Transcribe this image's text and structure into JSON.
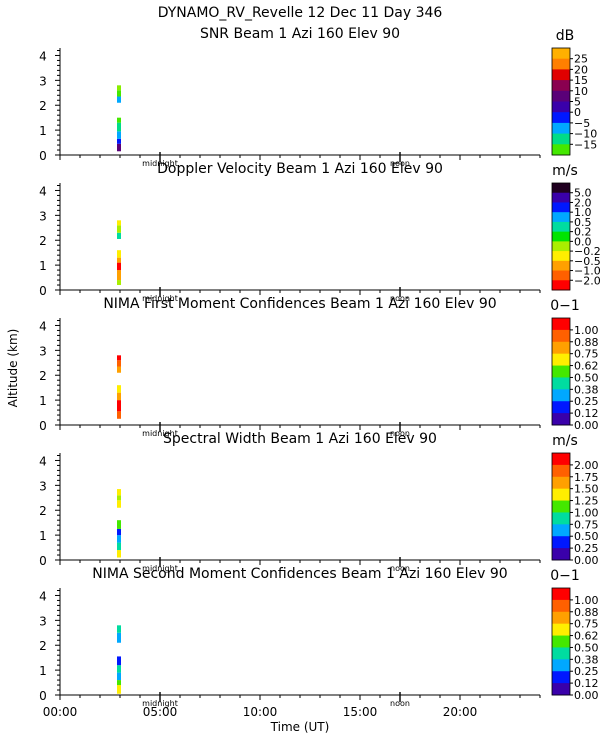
{
  "figure": {
    "title": "DYNAMO_RV_Revelle  12 Dec 11 Day 346",
    "xlabel": "Time (UT)",
    "ylabel": "Altitude (km)",
    "x_ticks": [
      "00:00",
      "05:00",
      "10:00",
      "15:00",
      "20:00"
    ],
    "x_tick_values": [
      0,
      5,
      10,
      15,
      20
    ],
    "xlim": [
      0,
      24
    ],
    "y_ticks": [
      "0",
      "1",
      "2",
      "3",
      "4"
    ],
    "ylim": [
      0,
      4.3
    ],
    "markers": [
      {
        "label": "midnight",
        "time": 5.0
      },
      {
        "label": "noon",
        "time": 17.0
      }
    ]
  },
  "chart_data": [
    {
      "type": "heatmap",
      "title": "SNR Beam 1 Azi 160 Elev 90",
      "unit": "dB",
      "colorbar": {
        "labels": [
          "25",
          "20",
          "15",
          "10",
          "5",
          "0",
          "−5",
          "−10",
          "−15"
        ],
        "colors": [
          "#ffb000",
          "#ff7f00",
          "#e00000",
          "#8a0050",
          "#5a0078",
          "#3a00aa",
          "#0018ff",
          "#00a8ff",
          "#00dc88",
          "#44e800"
        ]
      },
      "segments": [
        {
          "time": 2.95,
          "alt_start": 0.15,
          "alt_end": 0.45,
          "color": "#5a0078"
        },
        {
          "time": 2.95,
          "alt_start": 0.45,
          "alt_end": 0.65,
          "color": "#0018ff"
        },
        {
          "time": 2.95,
          "alt_start": 0.65,
          "alt_end": 0.95,
          "color": "#00a8ff"
        },
        {
          "time": 2.95,
          "alt_start": 0.95,
          "alt_end": 1.3,
          "color": "#00dc88"
        },
        {
          "time": 2.95,
          "alt_start": 1.3,
          "alt_end": 1.5,
          "color": "#44e800"
        },
        {
          "time": 2.95,
          "alt_start": 2.1,
          "alt_end": 2.35,
          "color": "#00a8ff"
        },
        {
          "time": 2.95,
          "alt_start": 2.35,
          "alt_end": 2.6,
          "color": "#44e800"
        },
        {
          "time": 2.95,
          "alt_start": 2.6,
          "alt_end": 2.8,
          "color": "#88ee00"
        }
      ]
    },
    {
      "type": "heatmap",
      "title": "Doppler Velocity Beam 1 Azi 160 Elev 90",
      "unit": "m/s",
      "colorbar": {
        "labels": [
          "5.0",
          "2.0",
          "1.0",
          "0.5",
          "0.2",
          "0.0",
          "−0.2",
          "−0.5",
          "−1.0",
          "−2.0"
        ],
        "colors": [
          "#200020",
          "#3a00aa",
          "#0018ff",
          "#00a8ff",
          "#00dca0",
          "#00e400",
          "#aaee00",
          "#ffee00",
          "#ffa000",
          "#ff6000",
          "#ff0000"
        ]
      },
      "segments": [
        {
          "time": 2.95,
          "alt_start": 0.2,
          "alt_end": 0.4,
          "color": "#aaee00"
        },
        {
          "time": 2.95,
          "alt_start": 0.4,
          "alt_end": 0.8,
          "color": "#ffa000"
        },
        {
          "time": 2.95,
          "alt_start": 0.8,
          "alt_end": 1.1,
          "color": "#ff0000"
        },
        {
          "time": 2.95,
          "alt_start": 1.1,
          "alt_end": 1.3,
          "color": "#ffa000"
        },
        {
          "time": 2.95,
          "alt_start": 1.3,
          "alt_end": 1.6,
          "color": "#ffee00"
        },
        {
          "time": 2.95,
          "alt_start": 2.05,
          "alt_end": 2.3,
          "color": "#00dca0"
        },
        {
          "time": 2.95,
          "alt_start": 2.3,
          "alt_end": 2.6,
          "color": "#aaee00"
        },
        {
          "time": 2.95,
          "alt_start": 2.6,
          "alt_end": 2.8,
          "color": "#ffee00"
        }
      ]
    },
    {
      "type": "heatmap",
      "title": "NIMA First Moment Confidences Beam 1 Azi 160 Elev 90",
      "unit": "0−1",
      "colorbar": {
        "labels": [
          "1.00",
          "0.88",
          "0.75",
          "0.62",
          "0.50",
          "0.38",
          "0.25",
          "0.12",
          "0.00"
        ],
        "colors": [
          "#ff0000",
          "#ff6000",
          "#ffa000",
          "#ffee00",
          "#44e800",
          "#00dca0",
          "#00a8ff",
          "#0018ff",
          "#3a00aa"
        ]
      },
      "segments": [
        {
          "time": 2.95,
          "alt_start": 0.25,
          "alt_end": 0.55,
          "color": "#ff6000"
        },
        {
          "time": 2.95,
          "alt_start": 0.55,
          "alt_end": 1.0,
          "color": "#ff0000"
        },
        {
          "time": 2.95,
          "alt_start": 1.0,
          "alt_end": 1.3,
          "color": "#ffa000"
        },
        {
          "time": 2.95,
          "alt_start": 1.3,
          "alt_end": 1.6,
          "color": "#ffee00"
        },
        {
          "time": 2.95,
          "alt_start": 2.1,
          "alt_end": 2.35,
          "color": "#ffa000"
        },
        {
          "time": 2.95,
          "alt_start": 2.35,
          "alt_end": 2.6,
          "color": "#ff6000"
        },
        {
          "time": 2.95,
          "alt_start": 2.6,
          "alt_end": 2.8,
          "color": "#ff0000"
        }
      ]
    },
    {
      "type": "heatmap",
      "title": "Spectral Width Beam 1 Azi 160 Elev 90",
      "unit": "m/s",
      "colorbar": {
        "labels": [
          "2.00",
          "1.75",
          "1.50",
          "1.25",
          "1.00",
          "0.75",
          "0.50",
          "0.25",
          "0.00"
        ],
        "colors": [
          "#ff0000",
          "#ff6000",
          "#ffa000",
          "#ffee00",
          "#44e800",
          "#00dca0",
          "#00a8ff",
          "#0018ff",
          "#3a00aa"
        ]
      },
      "segments": [
        {
          "time": 2.95,
          "alt_start": 0.1,
          "alt_end": 0.4,
          "color": "#ffee00"
        },
        {
          "time": 2.95,
          "alt_start": 0.4,
          "alt_end": 0.7,
          "color": "#00dca0"
        },
        {
          "time": 2.95,
          "alt_start": 0.7,
          "alt_end": 1.0,
          "color": "#00a8ff"
        },
        {
          "time": 2.95,
          "alt_start": 1.0,
          "alt_end": 1.25,
          "color": "#0018ff"
        },
        {
          "time": 2.95,
          "alt_start": 1.25,
          "alt_end": 1.6,
          "color": "#44e800"
        },
        {
          "time": 2.95,
          "alt_start": 2.1,
          "alt_end": 2.4,
          "color": "#ffee00"
        },
        {
          "time": 2.95,
          "alt_start": 2.4,
          "alt_end": 2.6,
          "color": "#aaee00"
        },
        {
          "time": 2.95,
          "alt_start": 2.6,
          "alt_end": 2.85,
          "color": "#ffee00"
        }
      ]
    },
    {
      "type": "heatmap",
      "title": "NIMA Second Moment Confidences Beam 1 Azi 160 Elev 90",
      "unit": "0−1",
      "colorbar": {
        "labels": [
          "1.00",
          "0.88",
          "0.75",
          "0.62",
          "0.50",
          "0.38",
          "0.25",
          "0.12",
          "0.00"
        ],
        "colors": [
          "#ff0000",
          "#ff6000",
          "#ffa000",
          "#ffee00",
          "#44e800",
          "#00dca0",
          "#00a8ff",
          "#0018ff",
          "#3a00aa"
        ]
      },
      "segments": [
        {
          "time": 2.95,
          "alt_start": 0.05,
          "alt_end": 0.4,
          "color": "#ffee00"
        },
        {
          "time": 2.95,
          "alt_start": 0.4,
          "alt_end": 0.6,
          "color": "#44e800"
        },
        {
          "time": 2.95,
          "alt_start": 0.6,
          "alt_end": 0.9,
          "color": "#00a8ff"
        },
        {
          "time": 2.95,
          "alt_start": 0.9,
          "alt_end": 1.2,
          "color": "#00dca0"
        },
        {
          "time": 2.95,
          "alt_start": 1.2,
          "alt_end": 1.55,
          "color": "#0018ff"
        },
        {
          "time": 2.95,
          "alt_start": 2.1,
          "alt_end": 2.5,
          "color": "#00a8ff"
        },
        {
          "time": 2.95,
          "alt_start": 2.5,
          "alt_end": 2.8,
          "color": "#00dca0"
        }
      ]
    }
  ]
}
